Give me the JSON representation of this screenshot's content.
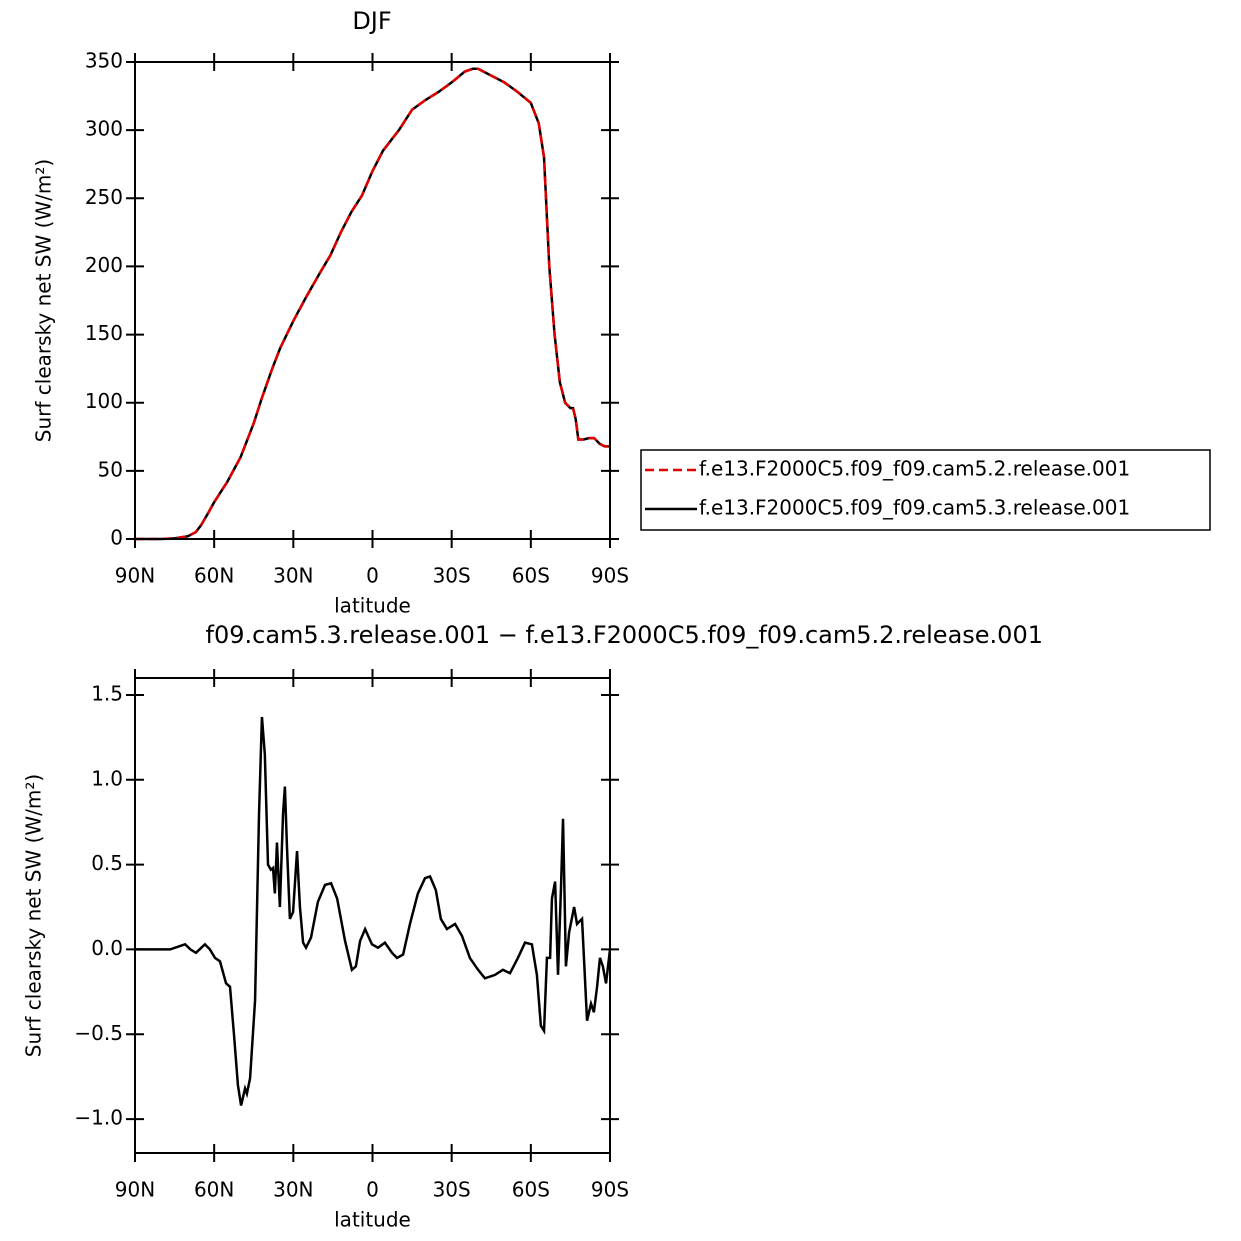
{
  "chart_data": [
    {
      "type": "line",
      "title": "DJF",
      "xlabel": "latitude",
      "ylabel": "Surf clearsky net SW (W/m²)",
      "x": [
        90,
        80,
        75,
        70,
        67,
        65,
        62,
        60,
        55,
        50,
        45,
        42,
        38,
        35,
        30,
        25,
        20,
        16,
        12,
        8,
        4,
        0,
        -4,
        -10,
        -15,
        -20,
        -25,
        -30,
        -35,
        -38,
        -40,
        -45,
        -50,
        -55,
        -60,
        -63,
        -65,
        -67,
        -69,
        -71,
        -73,
        -75,
        -76,
        -77,
        -78,
        -80,
        -82,
        -84,
        -86,
        -88,
        -90
      ],
      "series": [
        {
          "name": "f.e13.F2000C5.f09_f09.cam5.2.release.001",
          "color": "#e00000",
          "linestyle": "dashed",
          "values": [
            0,
            0,
            0.5,
            2,
            5,
            10,
            20,
            27,
            42,
            60,
            85,
            103,
            125,
            140,
            160,
            178,
            195,
            208,
            225,
            240,
            252,
            270,
            285,
            300,
            315,
            322,
            328,
            335,
            343,
            345,
            345,
            340,
            335,
            328,
            320,
            305,
            280,
            200,
            150,
            115,
            100,
            96,
            96,
            88,
            73,
            73,
            74,
            74,
            70,
            68,
            68
          ]
        },
        {
          "name": "f.e13.F2000C5.f09_f09.cam5.3.release.001",
          "color": "#000000",
          "linestyle": "solid",
          "values": [
            0,
            0,
            0.5,
            2,
            5,
            10,
            20,
            27,
            42,
            60,
            85,
            103,
            125,
            140,
            160,
            178,
            195,
            208,
            225,
            240,
            252,
            270,
            285,
            300,
            315,
            322,
            328,
            335,
            343,
            345,
            345,
            340,
            335,
            328,
            320,
            305,
            280,
            200,
            150,
            115,
            100,
            96,
            96,
            88,
            73,
            73,
            74,
            74,
            70,
            68,
            68
          ]
        }
      ],
      "xlim": [
        90,
        -90
      ],
      "xticks": [
        {
          "value": 90,
          "label": "90N"
        },
        {
          "value": 60,
          "label": "60N"
        },
        {
          "value": 30,
          "label": "30N"
        },
        0,
        {
          "value": -30,
          "label": "30S"
        },
        {
          "value": -60,
          "label": "60S"
        },
        {
          "value": -90,
          "label": "90S"
        }
      ],
      "ylim": [
        0,
        350
      ],
      "yticks": [
        0,
        50,
        100,
        150,
        200,
        250,
        300,
        350
      ],
      "legend": "right-outside"
    },
    {
      "type": "line",
      "title": "f09.cam5.3.release.001 − f.e13.F2000C5.f09_f09.cam5.2.release.001",
      "xlabel": "latitude",
      "ylabel": "Surf clearsky net SW (W/m²)",
      "x": [
        90,
        76.7,
        73,
        71,
        69,
        66.9,
        63.5,
        61.6,
        59.7,
        57.8,
        55.5,
        54,
        52.5,
        51,
        49.8,
        48.3,
        47.6,
        46.4,
        44.5,
        43,
        41.9,
        40.8,
        39.6,
        38.5,
        37.7,
        37,
        36.2,
        35.1,
        33.9,
        33.2,
        32.4,
        31.3,
        30.1,
        28.6,
        27.5,
        26.3,
        25.2,
        23.3,
        20.7,
        18,
        15.7,
        13.4,
        10.4,
        7.8,
        6.3,
        4.7,
        2.8,
        0.2,
        -2.1,
        -4.7,
        -7.4,
        -9.3,
        -11.6,
        -14.2,
        -17.2,
        -19.9,
        -21.8,
        -24,
        -25.9,
        -28.2,
        -31.3,
        -33.9,
        -36.9,
        -40,
        -42.6,
        -46.4,
        -49.4,
        -52.1,
        -55.1,
        -57.8,
        -60.4,
        -62.3,
        -63.8,
        -65,
        -66.1,
        -67.3,
        -68,
        -69.2,
        -70.3,
        -71.4,
        -72.2,
        -73.3,
        -74.5,
        -76.4,
        -77.5,
        -79.4,
        -81.3,
        -82.8,
        -83.9,
        -85.1,
        -86.2,
        -87.3,
        -88.5,
        -90
      ],
      "series": [
        {
          "color": "#000000",
          "linestyle": "solid",
          "values": [
            0,
            0,
            0.02,
            0.03,
            0,
            -0.02,
            0.03,
            0,
            -0.05,
            -0.07,
            -0.2,
            -0.22,
            -0.5,
            -0.8,
            -0.92,
            -0.82,
            -0.85,
            -0.76,
            -0.3,
            0.8,
            1.37,
            1.15,
            0.5,
            0.47,
            0.48,
            0.33,
            0.63,
            0.25,
            0.8,
            0.96,
            0.6,
            0.18,
            0.22,
            0.58,
            0.25,
            0.04,
            0.01,
            0.07,
            0.28,
            0.38,
            0.39,
            0.3,
            0.05,
            -0.12,
            -0.1,
            0.05,
            0.12,
            0.03,
            0.01,
            0.04,
            -0.02,
            -0.05,
            -0.03,
            0.15,
            0.33,
            0.42,
            0.43,
            0.35,
            0.18,
            0.12,
            0.15,
            0.08,
            -0.05,
            -0.12,
            -0.17,
            -0.15,
            -0.12,
            -0.14,
            -0.05,
            0.04,
            0.03,
            -0.15,
            -0.45,
            -0.48,
            -0.05,
            -0.05,
            0.3,
            0.4,
            -0.15,
            0.35,
            0.77,
            -0.1,
            0.1,
            0.25,
            0.15,
            0.18,
            -0.42,
            -0.32,
            -0.37,
            -0.22,
            -0.05,
            -0.1,
            -0.2,
            0
          ]
        }
      ],
      "xlim": [
        90,
        -90
      ],
      "xticks": [
        {
          "value": 90,
          "label": "90N"
        },
        {
          "value": 60,
          "label": "60N"
        },
        {
          "value": 30,
          "label": "30N"
        },
        0,
        {
          "value": -30,
          "label": "30S"
        },
        {
          "value": -60,
          "label": "60S"
        },
        {
          "value": -90,
          "label": "90S"
        }
      ],
      "ylim": [
        -1.2,
        1.6
      ],
      "yticks": [
        {
          "value": -1,
          "label": "−1.0"
        },
        {
          "value": -0.5,
          "label": "−0.5"
        },
        {
          "value": 0,
          "label": "0.0"
        },
        0.5,
        {
          "value": 1,
          "label": "1.0"
        },
        1.5
      ]
    }
  ]
}
